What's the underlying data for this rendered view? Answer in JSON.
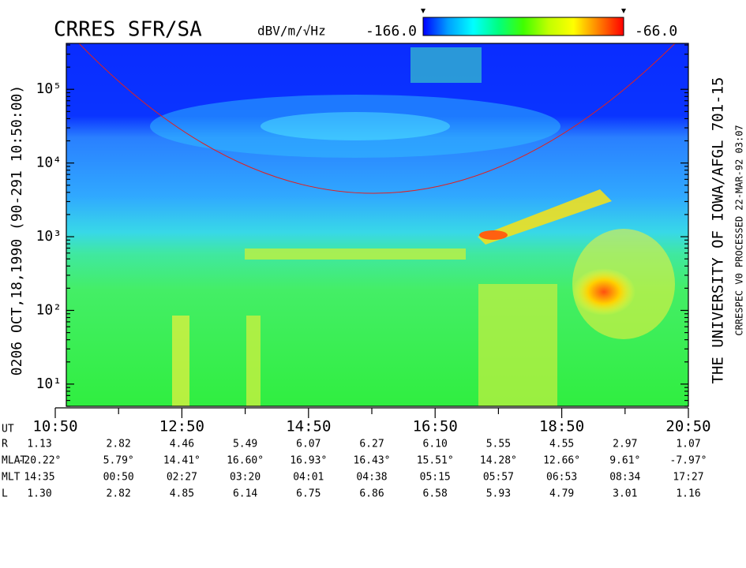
{
  "chart_data": {
    "type": "spectrogram",
    "title": "CRRES SFR/SA",
    "log_y": true,
    "ylim": [
      5,
      420000
    ],
    "yticks": [
      {
        "value": 10,
        "label": "10¹"
      },
      {
        "value": 100,
        "label": "10²"
      },
      {
        "value": 1000,
        "label": "10³"
      },
      {
        "value": 10000,
        "label": "10⁴"
      },
      {
        "value": 100000,
        "label": "10⁵"
      }
    ],
    "x_label": "UT",
    "categories": [
      "10:50",
      null,
      "12:50",
      null,
      "14:50",
      null,
      "16:50",
      null,
      "18:50",
      null,
      "20:50"
    ],
    "colorbar": {
      "label": "dBV/m/√Hz",
      "min": {
        "value": -166,
        "label": "-166.0"
      },
      "max": {
        "value": -66,
        "label": "-66.0"
      },
      "colors": [
        "#0000ff",
        "#00a0ff",
        "#00ffff",
        "#00ff80",
        "#40ff00",
        "#c0ff00",
        "#ffff00",
        "#ff8000",
        "#ff0000"
      ]
    }
  },
  "left_label": "0206  OCT,18,1990  (90-291 10:50:00)",
  "right_label": "THE UNIVERSITY OF IOWA/AFGL 701-15",
  "processing_label": "CRRESPEC V0   PROCESSED 22-MAR-92  03:07",
  "ephemeris": [
    {
      "name": "R",
      "values": [
        "1.13",
        "2.82",
        "4.46",
        "5.49",
        "6.07",
        "6.27",
        "6.10",
        "5.55",
        "4.55",
        "2.97",
        "1.07"
      ]
    },
    {
      "name": "MLAT",
      "values": [
        "-20.22°",
        "5.79°",
        "14.41°",
        "16.60°",
        "16.93°",
        "16.43°",
        "15.51°",
        "14.28°",
        "12.66°",
        "9.61°",
        "-7.97°"
      ]
    },
    {
      "name": "MLT",
      "values": [
        "14:35",
        "00:50",
        "02:27",
        "03:20",
        "04:01",
        "04:38",
        "05:15",
        "05:57",
        "06:53",
        "08:34",
        "17:27"
      ]
    },
    {
      "name": "L",
      "values": [
        "1.30",
        "2.82",
        "4.85",
        "6.14",
        "6.75",
        "6.86",
        "6.58",
        "5.93",
        "4.79",
        "3.01",
        "1.16"
      ]
    }
  ]
}
